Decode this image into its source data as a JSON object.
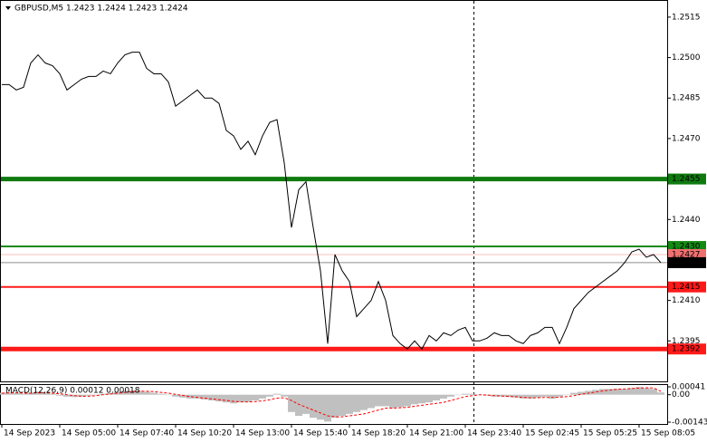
{
  "chart_data": [
    {
      "type": "line",
      "title": "GBPUSD,M5  1.2423 1.2424 1.2423 1.2424",
      "color": "#000000",
      "values": [
        1.249,
        1.249,
        1.2488,
        1.2489,
        1.2498,
        1.2501,
        1.2498,
        1.2497,
        1.2494,
        1.2488,
        1.249,
        1.2492,
        1.2493,
        1.2493,
        1.2495,
        1.2494,
        1.2498,
        1.2501,
        1.2502,
        1.2502,
        1.2496,
        1.2494,
        1.2494,
        1.2491,
        1.2482,
        1.2484,
        1.2486,
        1.2488,
        1.2485,
        1.2485,
        1.2483,
        1.2473,
        1.2471,
        1.2466,
        1.2469,
        1.2464,
        1.2471,
        1.2476,
        1.2477,
        1.2461,
        1.2437,
        1.2451,
        1.2454,
        1.2437,
        1.2421,
        1.2394,
        1.2427,
        1.2421,
        1.2417,
        1.2404,
        1.2407,
        1.241,
        1.2417,
        1.241,
        1.2397,
        1.2394,
        1.2392,
        1.2395,
        1.2392,
        1.2397,
        1.2395,
        1.2398,
        1.2397,
        1.2399,
        1.24,
        1.2395,
        1.2395,
        1.2396,
        1.2398,
        1.2397,
        1.2397,
        1.2395,
        1.2394,
        1.2397,
        1.2398,
        1.24,
        1.24,
        1.2394,
        1.24,
        1.2407,
        1.241,
        1.2413,
        1.2415,
        1.2417,
        1.2419,
        1.2421,
        1.2424,
        1.2428,
        1.2429,
        1.2426,
        1.2427,
        1.2424
      ],
      "ylim": [
        1.2381,
        1.252
      ],
      "yticks": [
        1.2515,
        {
          "value": 1.25,
          "label": "1.2500"
        },
        1.2485,
        {
          "value": 1.247,
          "label": "1.2470"
        },
        {
          "value": 1.244,
          "label": "1.2440"
        },
        {
          "value": 1.241,
          "label": "1.2410"
        },
        1.2395
      ],
      "levels": [
        {
          "value": 1.2455,
          "label": "1.2455",
          "color": "#0f7a0f",
          "style": "thick"
        },
        {
          "value": 1.243,
          "label": "1.2430",
          "color": "#138a13",
          "style": "normal"
        },
        {
          "value": 1.2427,
          "label": "1.2427",
          "color": "#f07070",
          "style": "thin"
        },
        {
          "value": 1.2424,
          "label": "1.2424",
          "color": "#000000",
          "style": "thin"
        },
        {
          "value": 1.2415,
          "label": "1.2415",
          "color": "#ff1a1a",
          "style": "normal"
        },
        {
          "value": 1.2392,
          "label": "1.2392",
          "color": "#ff1a1a",
          "style": "thick"
        }
      ],
      "x_labels": [
        "14 Sep 2023",
        "14 Sep 05:00",
        "14 Sep 07:40",
        "14 Sep 10:20",
        "14 Sep 13:00",
        "14 Sep 15:40",
        "14 Sep 18:20",
        "14 Sep 21:00",
        "14 Sep 23:40",
        "15 Sep 02:45",
        "15 Sep 05:25",
        "15 Sep 08:05"
      ]
    },
    {
      "type": "macd",
      "title": "MACD(12,26,9) 0.00012 0.00018",
      "ylim": [
        -0.00143,
        0.00041
      ],
      "yticks": [
        0.00041,
        {
          "value": 0,
          "label": "0.00"
        },
        -0.00143
      ],
      "histogram": {
        "color": "#c0c0c0",
        "values": [
          0.0001,
          0.00012,
          0.0001,
          5e-05,
          0.0001,
          0.00015,
          0.0001,
          5e-05,
          -5e-05,
          -0.0001,
          -0.00012,
          -0.0001,
          -5e-05,
          0,
          5e-05,
          0.0001,
          0.00015,
          0.0002,
          0.00022,
          0.0002,
          0.00015,
          0.0001,
          5e-05,
          0,
          -0.0001,
          -0.00015,
          -0.0002,
          -0.0002,
          -0.00025,
          -0.0003,
          -0.00035,
          -0.0004,
          -0.00045,
          -0.0004,
          -0.00038,
          -0.0003,
          -0.0002,
          -0.0001,
          5e-05,
          -0.0001,
          -0.0009,
          -0.0011,
          -0.001,
          -0.0012,
          -0.0013,
          -0.0014,
          -0.0012,
          -0.0011,
          -0.001,
          -0.0009,
          -0.0008,
          -0.0007,
          -0.0006,
          -0.0006,
          -0.0007,
          -0.00065,
          -0.0006,
          -0.0005,
          -0.00045,
          -0.0004,
          -0.0003,
          -0.0002,
          -0.0001,
          0,
          5e-05,
          5e-05,
          0,
          -5e-05,
          -0.0001,
          -0.0001,
          -0.00012,
          -0.00015,
          -0.0002,
          -0.0002,
          -0.00015,
          -0.0001,
          -0.0002,
          -0.0001,
          0,
          0.0001,
          0.00015,
          0.0002,
          0.00025,
          0.0003,
          0.0003,
          0.00032,
          0.0003,
          0.00035,
          0.0004,
          0.00035,
          0.0003,
          0.00012
        ]
      },
      "signal": {
        "color": "#ff0000",
        "values": [
          8e-05,
          0.0001,
          0.0001,
          8e-05,
          8e-05,
          0.0001,
          0.0001,
          8e-05,
          5e-05,
          0,
          -5e-05,
          -8e-05,
          -8e-05,
          -5e-05,
          0,
          4e-05,
          8e-05,
          0.00012,
          0.00016,
          0.00018,
          0.00018,
          0.00016,
          0.00012,
          8e-05,
          2e-05,
          -4e-05,
          -0.0001,
          -0.00014,
          -0.00018,
          -0.00022,
          -0.00026,
          -0.0003,
          -0.00035,
          -0.00037,
          -0.00038,
          -0.00036,
          -0.00032,
          -0.00026,
          -0.00018,
          -0.00016,
          -0.0003,
          -0.0005,
          -0.00065,
          -0.0008,
          -0.00095,
          -0.0011,
          -0.00115,
          -0.00115,
          -0.0011,
          -0.00105,
          -0.001,
          -0.0009,
          -0.0008,
          -0.0007,
          -0.0007,
          -0.00068,
          -0.00066,
          -0.0006,
          -0.00055,
          -0.0005,
          -0.00045,
          -0.0004,
          -0.0003,
          -0.0002,
          -0.0001,
          -5e-05,
          0,
          -2e-05,
          -5e-05,
          -7e-05,
          -9e-05,
          -0.00011,
          -0.00014,
          -0.00016,
          -0.00016,
          -0.00014,
          -0.00015,
          -0.00013,
          -0.0001,
          -5e-05,
          2e-05,
          8e-05,
          0.00014,
          0.0002,
          0.00024,
          0.00028,
          0.0003,
          0.00032,
          0.00035,
          0.00036,
          0.00035,
          0.00018
        ]
      }
    }
  ]
}
